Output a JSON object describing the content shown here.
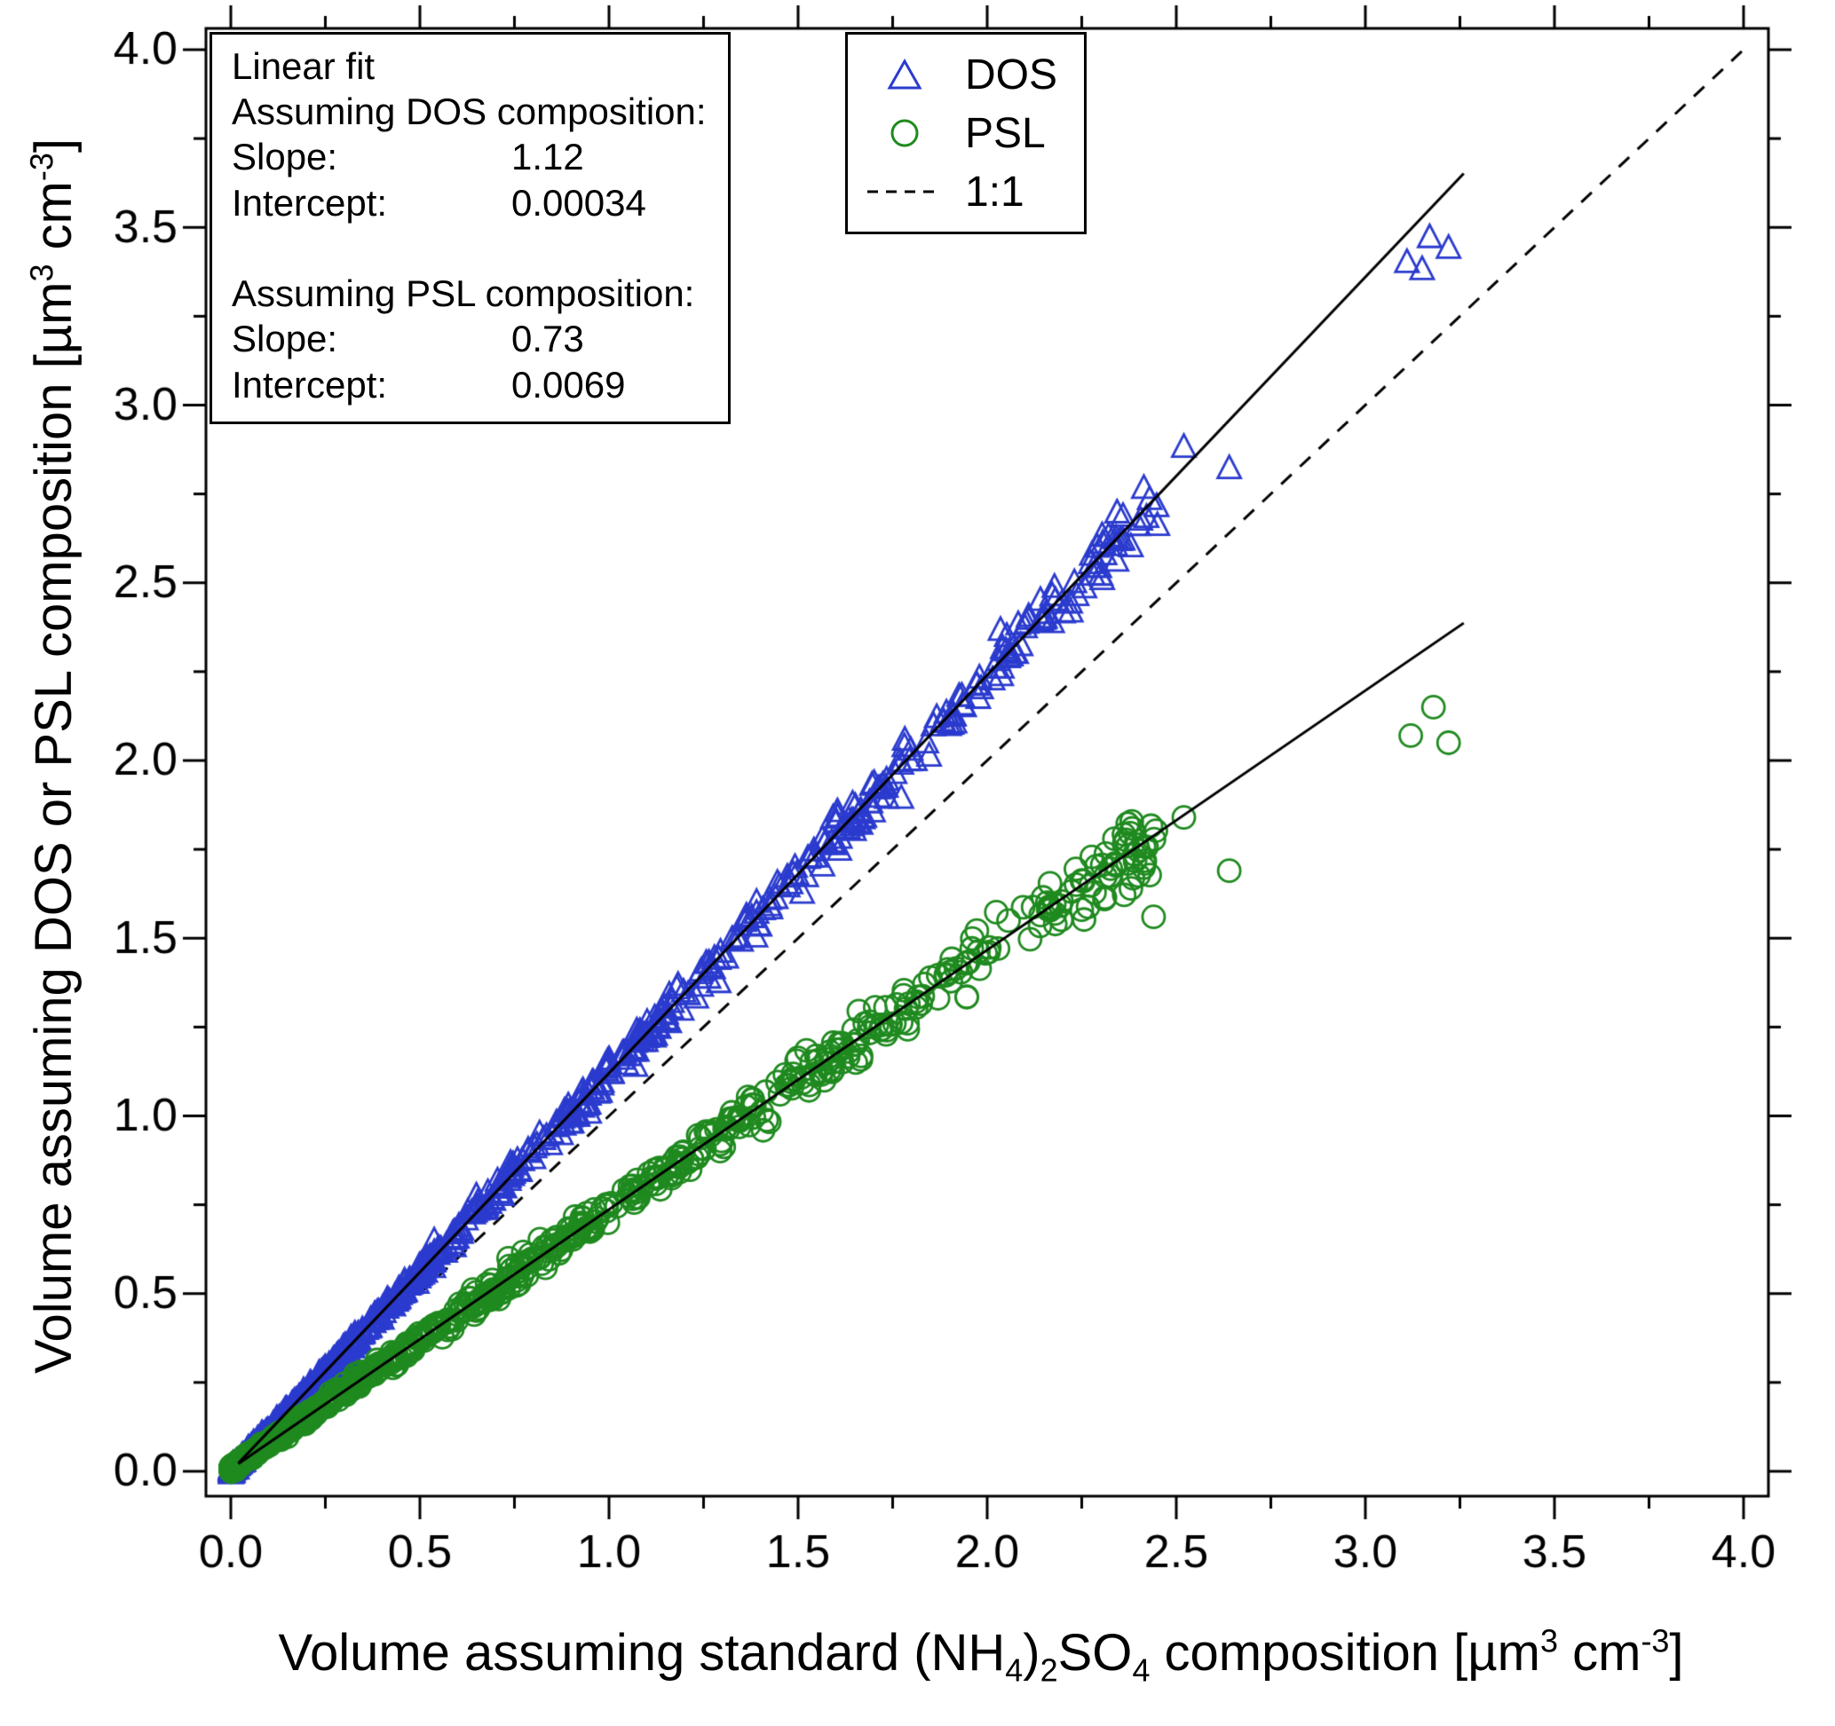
{
  "chart_data": {
    "type": "scatter",
    "title": "",
    "xlim": [
      0,
      4
    ],
    "ylim": [
      0,
      4
    ],
    "xticks": [
      0,
      0.5,
      1,
      1.5,
      2,
      2.5,
      3,
      3.5,
      4
    ],
    "yticks": [
      0,
      0.5,
      1,
      1.5,
      2,
      2.5,
      3,
      3.5,
      4
    ],
    "minor_step": 0.25,
    "axis_color": "#000000",
    "grid": false,
    "legend_position": "top-center",
    "x_title_parts": [
      {
        "t": "Volume assuming standard (NH"
      },
      {
        "t": "4",
        "s": "sub"
      },
      {
        "t": ")"
      },
      {
        "t": "2",
        "s": "sub"
      },
      {
        "t": "SO"
      },
      {
        "t": "4",
        "s": "sub"
      },
      {
        "t": " composition [µm"
      },
      {
        "t": "3",
        "s": "sup"
      },
      {
        "t": " cm"
      },
      {
        "t": "-3",
        "s": "sup"
      },
      {
        "t": "]"
      }
    ],
    "y_title_parts": [
      {
        "t": "Volume assuming DOS or PSL composition [µm"
      },
      {
        "t": "3",
        "s": "sup"
      },
      {
        "t": " cm"
      },
      {
        "t": "-3",
        "s": "sup"
      },
      {
        "t": "]"
      }
    ],
    "reference_line": {
      "label": "1:1",
      "slope": 1,
      "intercept": 0,
      "dash": true,
      "color": "#000000"
    },
    "series": [
      {
        "name": "DOS",
        "marker": "triangle",
        "color": "#2b3bce",
        "fit": {
          "slope": 1.12,
          "intercept": 0.00034,
          "x_range": [
            0.02,
            3.26
          ],
          "color": "#000000"
        },
        "cloud": {
          "n": 780,
          "x_max": 2.45,
          "power": 2.2,
          "noise_base": 0.004,
          "noise_scale": 0.016,
          "seed": 1337
        },
        "extra_points": [
          [
            2.3,
            2.52
          ],
          [
            2.38,
            2.6
          ],
          [
            2.45,
            2.66
          ],
          [
            2.52,
            2.88
          ],
          [
            2.64,
            2.82
          ],
          [
            3.11,
            3.4
          ],
          [
            3.17,
            3.47
          ],
          [
            3.22,
            3.44
          ],
          [
            3.15,
            3.38
          ]
        ]
      },
      {
        "name": "PSL",
        "marker": "circle",
        "color": "#1f8a1f",
        "fit": {
          "slope": 0.73,
          "intercept": 0.0069,
          "x_range": [
            0.02,
            3.26
          ],
          "color": "#000000"
        },
        "cloud": {
          "n": 820,
          "x_max": 2.45,
          "power": 2.2,
          "noise_base": 0.004,
          "noise_scale": 0.018,
          "seed": 4242
        },
        "extra_points": [
          [
            2.18,
            1.54
          ],
          [
            2.25,
            1.58
          ],
          [
            2.31,
            1.61
          ],
          [
            2.38,
            1.64
          ],
          [
            2.44,
            1.56
          ],
          [
            2.52,
            1.84
          ],
          [
            2.64,
            1.69
          ],
          [
            3.12,
            2.07
          ],
          [
            3.18,
            2.15
          ],
          [
            3.22,
            2.05
          ]
        ]
      }
    ]
  },
  "legend": {
    "items": [
      {
        "label": "DOS",
        "marker": "triangle"
      },
      {
        "label": "PSL",
        "marker": "circle"
      },
      {
        "label": "1:1",
        "marker": "dashed-line"
      }
    ]
  },
  "annotation": {
    "lines": [
      {
        "label": "Linear fit",
        "value": ""
      },
      {
        "label": "Assuming DOS composition:",
        "value": ""
      },
      {
        "label": "Slope:",
        "value": "1.12"
      },
      {
        "label": "Intercept:",
        "value": "0.00034"
      },
      {
        "label": "",
        "value": ""
      },
      {
        "label": "Assuming PSL composition:",
        "value": ""
      },
      {
        "label": "Slope:",
        "value": "0.73"
      },
      {
        "label": "Intercept:",
        "value": "0.0069"
      }
    ]
  }
}
